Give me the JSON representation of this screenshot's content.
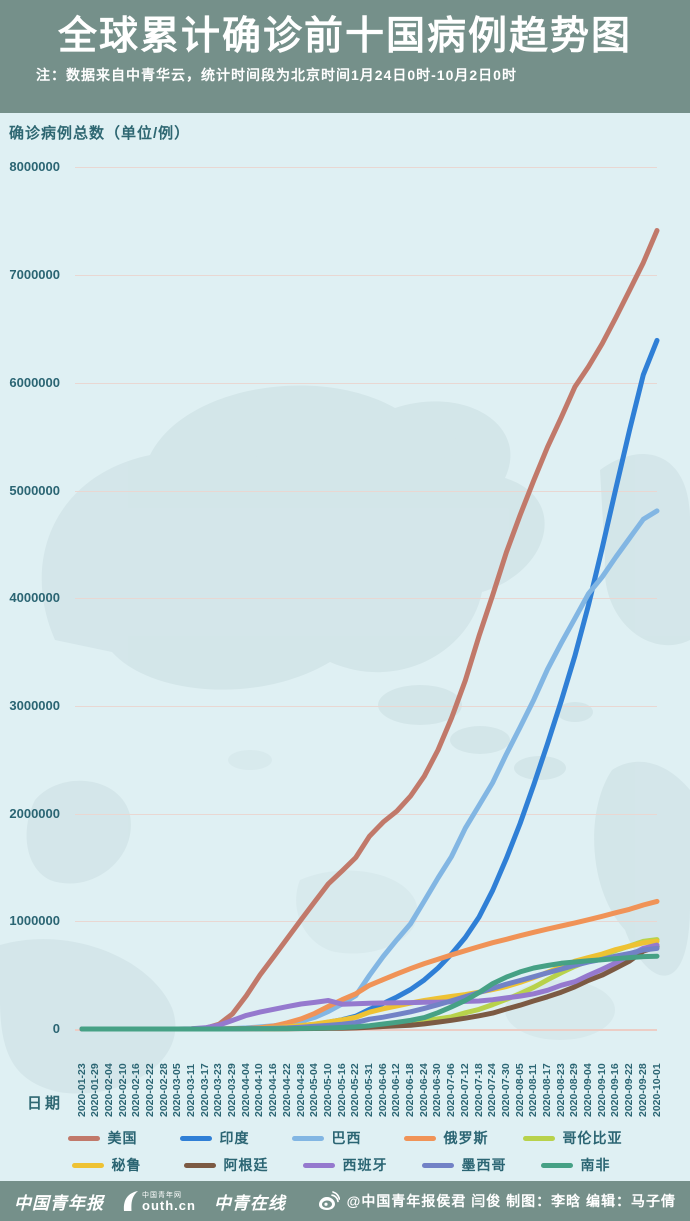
{
  "header": {
    "title": "全球累计确诊前十国病例趋势图",
    "note": "注：数据来自中青华云，统计时间段为北京时间1月24日0时-10月2日0时"
  },
  "colors": {
    "banner_bg": "#75908a",
    "chart_bg": "#dff0f3",
    "map_watermark": "#cde0e3",
    "gridline": "#e9d7d2",
    "text_teal": "#2b6573"
  },
  "chart_data": {
    "type": "line",
    "title": "全球累计确诊前十国病例趋势图",
    "ylabel": "确诊病例总数（单位/例）",
    "xlabel": "日期",
    "ylim": [
      0,
      8000000
    ],
    "ytick_interval": 1000000,
    "grid": true,
    "legend_position": "bottom",
    "yticks": [
      "8000000",
      "7000000",
      "6000000",
      "5000000",
      "4000000",
      "3000000",
      "2000000",
      "1000000",
      "0"
    ],
    "x": [
      "2020-01-23",
      "2020-01-29",
      "2020-02-04",
      "2020-02-10",
      "2020-02-16",
      "2020-02-22",
      "2020-02-28",
      "2020-03-05",
      "2020-03-11",
      "2020-03-17",
      "2020-03-23",
      "2020-03-29",
      "2020-04-04",
      "2020-04-10",
      "2020-04-16",
      "2020-04-22",
      "2020-04-28",
      "2020-05-04",
      "2020-05-10",
      "2020-05-16",
      "2020-05-22",
      "2020-05-31",
      "2020-06-06",
      "2020-06-12",
      "2020-06-18",
      "2020-06-24",
      "2020-06-30",
      "2020-07-06",
      "2020-07-12",
      "2020-07-18",
      "2020-07-24",
      "2020-07-30",
      "2020-08-05",
      "2020-08-11",
      "2020-08-17",
      "2020-08-23",
      "2020-08-29",
      "2020-09-04",
      "2020-09-10",
      "2020-09-16",
      "2020-09-22",
      "2020-09-28",
      "2020-10-01"
    ],
    "series": [
      {
        "name": "美国",
        "color": "#c1796a",
        "values": [
          1,
          5,
          11,
          12,
          15,
          35,
          62,
          221,
          1301,
          6421,
          43847,
          140909,
          308853,
          501615,
          671425,
          842624,
          1012583,
          1180634,
          1347881,
          1467884,
          1592599,
          1790191,
          1920904,
          2023347,
          2163290,
          2347022,
          2590552,
          2888729,
          3236130,
          3647715,
          4028569,
          4427493,
          4771846,
          5094400,
          5403213,
          5677288,
          5961582,
          6150016,
          6363805,
          6606293,
          6860251,
          7115491,
          7414123
        ]
      },
      {
        "name": "印度",
        "color": "#2f7fd6",
        "values": [
          0,
          0,
          3,
          3,
          3,
          3,
          3,
          30,
          62,
          137,
          499,
          1024,
          3082,
          7598,
          12759,
          21393,
          31332,
          42836,
          62939,
          85940,
          118447,
          182143,
          236657,
          297535,
          366946,
          456183,
          566840,
          697413,
          849522,
          1039084,
          1288108,
          1583792,
          1908254,
          2268675,
          2647663,
          3044940,
          3463972,
          3936747,
          4465863,
          5020359,
          5562663,
          6074702,
          6394068
        ]
      },
      {
        "name": "巴西",
        "color": "#82b6e3",
        "values": [
          0,
          0,
          0,
          0,
          0,
          0,
          1,
          4,
          52,
          291,
          1924,
          4256,
          10278,
          19638,
          30425,
          45757,
          71886,
          107780,
          162699,
          233142,
          310087,
          498440,
          672846,
          828810,
          978142,
          1188631,
          1402041,
          1603055,
          1864681,
          2074860,
          2287475,
          2552265,
          2801921,
          3057470,
          3340197,
          3582362,
          3812605,
          4041638,
          4197889,
          4382263,
          4558040,
          4732309,
          4810935
        ]
      },
      {
        "name": "俄罗斯",
        "color": "#f09357",
        "values": [
          0,
          2,
          2,
          2,
          2,
          2,
          2,
          4,
          20,
          114,
          438,
          1534,
          4731,
          11917,
          27938,
          57999,
          93558,
          145268,
          209688,
          272043,
          326448,
          405843,
          458689,
          511423,
          561091,
          606881,
          647849,
          687862,
          727162,
          765437,
          800849,
          832993,
          866627,
          897599,
          927745,
          956749,
          985346,
          1015105,
          1046370,
          1079519,
          1111157,
          1151438,
          1185231
        ]
      },
      {
        "name": "哥伦比亚",
        "color": "#b8d24b",
        "values": [
          0,
          0,
          0,
          0,
          0,
          0,
          0,
          0,
          1,
          65,
          277,
          702,
          1406,
          2473,
          3105,
          4149,
          5597,
          7668,
          10495,
          14216,
          18330,
          28236,
          36635,
          43682,
          57046,
          77313,
          95043,
          113389,
          150445,
          182140,
          226373,
          276055,
          327850,
          387481,
          456689,
          522138,
          581995,
          633321,
          686851,
          728590,
          770435,
          813056,
          829679
        ]
      },
      {
        "name": "秘鲁",
        "color": "#eec233",
        "values": [
          0,
          0,
          0,
          0,
          0,
          0,
          0,
          0,
          13,
          117,
          395,
          852,
          1746,
          5897,
          12491,
          19250,
          31190,
          45928,
          65015,
          84495,
          108769,
          155671,
          187400,
          214788,
          240908,
          264689,
          285213,
          302718,
          319646,
          341586,
          366550,
          395005,
          433100,
          478024,
          525803,
          576067,
          629961,
          663437,
          696190,
          738020,
          768895,
          800142,
          814829
        ]
      },
      {
        "name": "阿根廷",
        "color": "#7c5a43",
        "values": [
          0,
          0,
          0,
          0,
          0,
          0,
          0,
          1,
          19,
          65,
          266,
          745,
          1451,
          1975,
          2571,
          3144,
          4127,
          4887,
          5776,
          7479,
          9931,
          16851,
          22794,
          28764,
          35552,
          47216,
          64530,
          80447,
          100166,
          122524,
          148027,
          185373,
          220682,
          260911,
          299126,
          342154,
          392009,
          451198,
          500034,
          565446,
          631365,
          723132,
          765002
        ]
      },
      {
        "name": "西班牙",
        "color": "#9579ce",
        "values": [
          0,
          0,
          0,
          2,
          2,
          2,
          32,
          259,
          2277,
          11279,
          35136,
          80110,
          126168,
          157053,
          182816,
          208389,
          232128,
          247122,
          264663,
          230698,
          234824,
          239429,
          241310,
          243209,
          245268,
          247486,
          249271,
          252130,
          255953,
          260255,
          272421,
          288522,
          305767,
          326612,
          359082,
          405436,
          439286,
          498989,
          554143,
          614360,
          682267,
          748266,
          778607
        ]
      },
      {
        "name": "墨西哥",
        "color": "#7282c6",
        "values": [
          0,
          0,
          0,
          0,
          0,
          0,
          0,
          1,
          8,
          82,
          316,
          993,
          1890,
          3844,
          6297,
          10544,
          16752,
          24905,
          33460,
          45032,
          59567,
          90664,
          110026,
          133974,
          159793,
          191410,
          226089,
          261750,
          299750,
          338913,
          378285,
          416179,
          449961,
          485836,
          522162,
          556216,
          591712,
          623090,
          647507,
          676487,
          700580,
          733717,
          748315
        ]
      },
      {
        "name": "南非",
        "color": "#46a185",
        "values": [
          0,
          0,
          0,
          0,
          0,
          0,
          0,
          0,
          13,
          85,
          402,
          1280,
          1585,
          2003,
          2605,
          3465,
          4996,
          7220,
          9420,
          13524,
          19137,
          30967,
          45973,
          61927,
          80412,
          106108,
          151209,
          205721,
          264184,
          337594,
          421996,
          482169,
          529877,
          566109,
          589886,
          609773,
          622551,
          633015,
          642431,
          653444,
          663282,
          672572,
          676084
        ]
      }
    ]
  },
  "footer": {
    "logos": [
      {
        "text": "中国青年报"
      },
      {
        "caption": "中国青年网",
        "site": "outh.cn"
      },
      {
        "text": "中青在线"
      }
    ],
    "credit": "@中国青年报侯君 闫俊 制图：李晗 编辑：马子倩"
  }
}
